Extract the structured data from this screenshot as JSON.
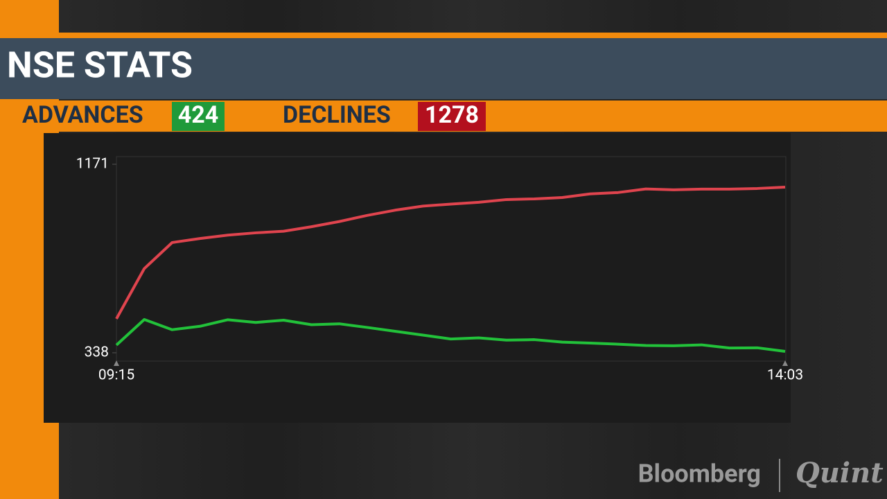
{
  "header": {
    "title": "NSE STATS",
    "advances_label": "ADVANCES",
    "advances": 424,
    "declines_label": "DECLINES",
    "declines": 1278
  },
  "logo": {
    "left": "Bloomberg",
    "right": "Quint"
  },
  "chart_data": {
    "type": "line",
    "categories": [
      "09:15",
      null,
      null,
      null,
      null,
      null,
      null,
      null,
      null,
      null,
      null,
      null,
      null,
      null,
      null,
      null,
      null,
      null,
      null,
      null,
      null,
      null,
      null,
      null,
      "14:03"
    ],
    "series": [
      {
        "color": "#e0444e",
        "values": [
          488,
          710,
          825,
          843,
          858,
          868,
          875,
          895,
          918,
          945,
          968,
          986,
          995,
          1003,
          1015,
          1018,
          1024,
          1040,
          1046,
          1062,
          1058,
          1061,
          1061,
          1064,
          1070
        ]
      },
      {
        "color": "#22c23a",
        "values": [
          372,
          485,
          440,
          455,
          484,
          472,
          482,
          462,
          466,
          450,
          433,
          416,
          399,
          404,
          394,
          396,
          385,
          381,
          376,
          370,
          369,
          373,
          359,
          360,
          344
        ]
      }
    ],
    "ylim": [
      338,
      1171
    ],
    "yticks": [
      338,
      1171
    ]
  }
}
